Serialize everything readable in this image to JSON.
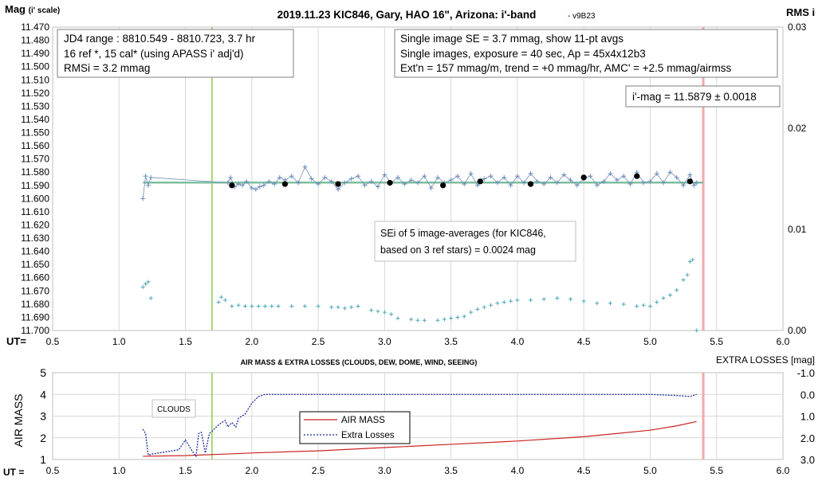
{
  "chart_data": [
    {
      "type": "scatter",
      "title": "2019.11.23 KIC846, Gary, HAO 16\", Arizona: i'-band",
      "version": "- v9B23",
      "ylabel": "Mag",
      "ylabel_suffix": "(i' scale)",
      "y2label": "RMS i",
      "xlabel": "UT=",
      "xlim": [
        0.5,
        6.0
      ],
      "ylim": [
        11.47,
        11.7
      ],
      "y_inverted": true,
      "y2lim": [
        0.0,
        0.03
      ],
      "grid": true,
      "x_ticks": [
        "0.5",
        "1.0",
        "1.5",
        "2.0",
        "2.5",
        "3.0",
        "3.5",
        "4.0",
        "4.5",
        "5.0",
        "5.5",
        "6.0"
      ],
      "y_ticks": [
        "11.470",
        "11.480",
        "11.490",
        "11.500",
        "11.510",
        "11.520",
        "11.530",
        "11.540",
        "11.550",
        "11.560",
        "11.570",
        "11.580",
        "11.590",
        "11.600",
        "11.610",
        "11.620",
        "11.630",
        "11.640",
        "11.650",
        "11.660",
        "11.670",
        "11.680",
        "11.690",
        "11.700"
      ],
      "y2_ticks": [
        "0.03",
        "0.02",
        "0.01",
        "0.00"
      ],
      "info_box_left": [
        "JD4 range : 8810.549 - 8810.723, 3.7  hr",
        "16 ref *, 15 cal* (using APASS i' adj'd)",
        "RMSi = 3.2 mmag"
      ],
      "info_box_right": [
        "Single image SE = 3.7 mmag, show 11-pt avgs",
        "Single images, exposure = 40 sec, Ap = 45x4x12b3",
        "Ext'n = 157 mmag/m, trend = +0 mmag/hr, AMC' = +2.5 mmag/airmss"
      ],
      "mag_box": "i'-mag = 11.5879 ± 0.0018",
      "sei_box": [
        "SEi of 5 image-averages (for KIC846,",
        "based on 3 ref stars) = 0.0024 mag"
      ],
      "vertical_markers": [
        {
          "x": 1.7,
          "color": "#8fce4a"
        },
        {
          "x": 5.4,
          "color": "#f4a9a9"
        }
      ],
      "mean_line": {
        "y": 11.5879,
        "x_range": [
          1.18,
          5.4
        ],
        "color": "#7fbf9f"
      },
      "series": [
        {
          "kind": "averages",
          "color": "#000000",
          "x": [
            1.85,
            2.25,
            2.65,
            3.04,
            3.44,
            3.72,
            4.1,
            4.5,
            4.9,
            5.3
          ],
          "y": [
            11.59,
            11.589,
            11.589,
            11.588,
            11.59,
            11.587,
            11.589,
            11.584,
            11.583,
            11.587
          ]
        },
        {
          "kind": "single-image",
          "color": "#6f8fb8",
          "x": [
            1.18,
            1.2,
            1.22,
            1.24,
            1.82,
            1.84,
            1.87,
            1.9,
            1.93,
            1.96,
            2.0,
            2.03,
            2.06,
            2.09,
            2.13,
            2.17,
            2.21,
            2.25,
            2.3,
            2.35,
            2.4,
            2.45,
            2.5,
            2.55,
            2.6,
            2.65,
            2.7,
            2.75,
            2.8,
            2.85,
            2.9,
            2.95,
            3.0,
            3.05,
            3.1,
            3.15,
            3.2,
            3.25,
            3.3,
            3.35,
            3.4,
            3.45,
            3.5,
            3.55,
            3.6,
            3.65,
            3.7,
            3.75,
            3.8,
            3.85,
            3.9,
            3.95,
            4.0,
            4.05,
            4.1,
            4.15,
            4.2,
            4.25,
            4.3,
            4.35,
            4.4,
            4.45,
            4.5,
            4.55,
            4.6,
            4.65,
            4.7,
            4.75,
            4.8,
            4.85,
            4.9,
            4.95,
            5.0,
            5.05,
            5.1,
            5.15,
            5.2,
            5.25,
            5.3,
            5.33,
            5.35
          ],
          "y": [
            11.6,
            11.583,
            11.59,
            11.584,
            11.588,
            11.584,
            11.591,
            11.589,
            11.59,
            11.587,
            11.592,
            11.593,
            11.591,
            11.59,
            11.587,
            11.589,
            11.584,
            11.586,
            11.583,
            11.588,
            11.576,
            11.585,
            11.589,
            11.584,
            11.587,
            11.593,
            11.588,
            11.585,
            11.583,
            11.59,
            11.587,
            11.591,
            11.582,
            11.588,
            11.584,
            11.589,
            11.586,
            11.588,
            11.583,
            11.592,
            11.584,
            11.588,
            11.586,
            11.583,
            11.589,
            11.581,
            11.59,
            11.585,
            11.583,
            11.588,
            11.584,
            11.59,
            11.583,
            11.588,
            11.581,
            11.587,
            11.589,
            11.584,
            11.588,
            11.582,
            11.586,
            11.59,
            11.585,
            11.583,
            11.59,
            11.587,
            11.581,
            11.586,
            11.583,
            11.589,
            11.58,
            11.588,
            11.587,
            11.581,
            11.588,
            11.58,
            11.584,
            11.59,
            11.582,
            11.59,
            11.588
          ]
        },
        {
          "kind": "rms",
          "axis": "right",
          "color": "#4ea8b5",
          "x": [
            1.18,
            1.2,
            1.22,
            1.24,
            1.75,
            1.77,
            1.8,
            1.85,
            1.9,
            1.95,
            2.0,
            2.05,
            2.1,
            2.15,
            2.2,
            2.3,
            2.4,
            2.5,
            2.6,
            2.65,
            2.7,
            2.75,
            2.8,
            2.9,
            2.95,
            3.0,
            3.05,
            3.1,
            3.2,
            3.25,
            3.3,
            3.4,
            3.45,
            3.5,
            3.55,
            3.6,
            3.65,
            3.7,
            3.75,
            3.8,
            3.85,
            3.9,
            3.95,
            4.0,
            4.1,
            4.2,
            4.3,
            4.4,
            4.5,
            4.6,
            4.7,
            4.8,
            4.9,
            4.95,
            5.0,
            5.05,
            5.1,
            5.15,
            5.2,
            5.25,
            5.28,
            5.3,
            5.32,
            5.35
          ],
          "y": [
            0.0043,
            0.0046,
            0.0048,
            0.0032,
            0.0028,
            0.0033,
            0.003,
            0.0024,
            0.0025,
            0.0024,
            0.0024,
            0.0024,
            0.0024,
            0.0024,
            0.0024,
            0.0024,
            0.0024,
            0.0024,
            0.0023,
            0.0023,
            0.0022,
            0.0023,
            0.0024,
            0.002,
            0.0019,
            0.0018,
            0.0016,
            0.0012,
            0.0011,
            0.001,
            0.001,
            0.001,
            0.0011,
            0.0012,
            0.0013,
            0.0014,
            0.0018,
            0.0021,
            0.0023,
            0.0025,
            0.0027,
            0.0028,
            0.0029,
            0.003,
            0.003,
            0.0031,
            0.0032,
            0.0031,
            0.0029,
            0.0027,
            0.0027,
            0.0026,
            0.0024,
            0.0025,
            0.0024,
            0.0028,
            0.0032,
            0.0035,
            0.004,
            0.005,
            0.0055,
            0.0068,
            0.007,
            0.0
          ]
        }
      ]
    },
    {
      "type": "line",
      "title": "AIR MASS & EXTRA LOSSES (CLOUDS, DEW, DOME, WIND, SEEING)",
      "ylabel": "AIR MASS",
      "y2label": "EXTRA LOSSES [mag]",
      "xlabel": "UT =",
      "xlim": [
        0.5,
        6.0
      ],
      "ylim": [
        1,
        5
      ],
      "y2lim": [
        -1.0,
        3.0
      ],
      "y2_inverted": true,
      "grid": true,
      "x_ticks": [
        "0.5",
        "1.0",
        "1.5",
        "2.0",
        "2.5",
        "3.0",
        "3.5",
        "4.0",
        "4.5",
        "5.0",
        "5.5",
        "6.0"
      ],
      "y_ticks": [
        "5",
        "4",
        "3",
        "2",
        "1"
      ],
      "y2_ticks": [
        "-1.0",
        "0.0",
        "1.0",
        "2.0",
        "3.0"
      ],
      "annotation": "CLOUDS",
      "legend": [
        "AIR MASS",
        "Extra Losses"
      ],
      "legend_placement": "center",
      "vertical_markers": [
        {
          "x": 1.7,
          "color": "#8fce4a"
        },
        {
          "x": 5.4,
          "color": "#f4a9a9"
        }
      ],
      "series": [
        {
          "name": "AIR MASS",
          "axis": "left",
          "color": "#cc2222",
          "x": [
            1.18,
            1.5,
            1.8,
            2.0,
            2.5,
            3.0,
            3.5,
            4.0,
            4.5,
            5.0,
            5.2,
            5.35
          ],
          "y": [
            1.15,
            1.18,
            1.25,
            1.3,
            1.4,
            1.55,
            1.7,
            1.85,
            2.05,
            2.35,
            2.55,
            2.75
          ]
        },
        {
          "name": "Extra Losses",
          "axis": "right",
          "color": "#1f2fa0",
          "x": [
            1.18,
            1.2,
            1.22,
            1.25,
            1.3,
            1.35,
            1.4,
            1.45,
            1.5,
            1.55,
            1.58,
            1.6,
            1.62,
            1.65,
            1.68,
            1.7,
            1.75,
            1.8,
            1.82,
            1.85,
            1.88,
            1.9,
            1.95,
            2.0,
            2.05,
            2.1,
            2.2,
            2.4,
            2.6,
            2.8,
            3.0,
            3.2,
            3.4,
            3.6,
            3.8,
            4.0,
            4.2,
            4.4,
            4.6,
            4.8,
            5.0,
            5.2,
            5.3,
            5.35
          ],
          "y": [
            1.6,
            1.8,
            2.8,
            2.75,
            2.7,
            2.65,
            2.6,
            2.55,
            2.1,
            2.6,
            2.85,
            1.8,
            1.75,
            2.7,
            1.8,
            1.7,
            1.4,
            1.2,
            1.5,
            1.3,
            1.5,
            1.1,
            0.9,
            0.4,
            0.1,
            0.0,
            0.0,
            0.0,
            0.0,
            0.0,
            0.0,
            0.0,
            0.0,
            0.0,
            0.0,
            0.0,
            0.0,
            0.0,
            0.0,
            0.0,
            0.0,
            0.05,
            0.1,
            0.0
          ]
        }
      ]
    }
  ]
}
